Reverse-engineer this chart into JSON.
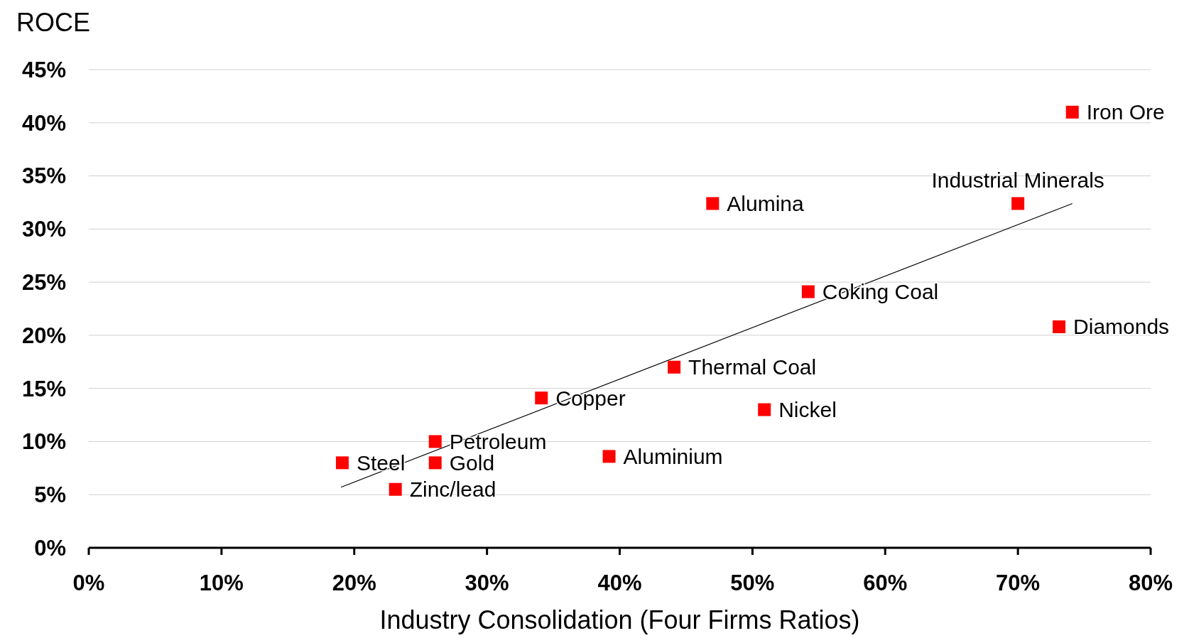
{
  "chart_data": {
    "type": "scatter",
    "ylabel": "ROCE",
    "xlabel": "Industry Consolidation (Four Firms Ratios)",
    "xlim": [
      0,
      80
    ],
    "ylim": [
      0,
      45
    ],
    "xticks": [
      {
        "value": 0,
        "label": "0%"
      },
      {
        "value": 10,
        "label": "10%"
      },
      {
        "value": 20,
        "label": "20%"
      },
      {
        "value": 30,
        "label": "30%"
      },
      {
        "value": 40,
        "label": "40%"
      },
      {
        "value": 50,
        "label": "50%"
      },
      {
        "value": 60,
        "label": "60%"
      },
      {
        "value": 70,
        "label": "70%"
      },
      {
        "value": 80,
        "label": "80%"
      }
    ],
    "yticks": [
      {
        "value": 0,
        "label": "0%"
      },
      {
        "value": 5,
        "label": "5%"
      },
      {
        "value": 10,
        "label": "10%"
      },
      {
        "value": 15,
        "label": "15%"
      },
      {
        "value": 20,
        "label": "20%"
      },
      {
        "value": 25,
        "label": "25%"
      },
      {
        "value": 30,
        "label": "30%"
      },
      {
        "value": 35,
        "label": "35%"
      },
      {
        "value": 40,
        "label": "40%"
      },
      {
        "value": 45,
        "label": "45%"
      }
    ],
    "grid": "y",
    "series": [
      {
        "marker": "square",
        "color": "#ff0000",
        "x": [
          74.1,
          70.0,
          47.0,
          54.2,
          73.1,
          44.1,
          50.9,
          34.1,
          39.2,
          26.1,
          26.1,
          19.1,
          23.1
        ],
        "values": [
          41.0,
          32.4,
          32.4,
          24.1,
          20.8,
          17.0,
          13.0,
          14.1,
          8.6,
          10.0,
          8.0,
          8.0,
          5.5
        ]
      },
      {
        "type": "line",
        "color": "#000000",
        "x": [
          19.0,
          74.1
        ],
        "values": [
          5.7,
          32.4
        ]
      }
    ],
    "annotations": [
      {
        "text": "Iron Ore",
        "x": 74.1,
        "y": 41.0
      },
      {
        "text": "Industrial Minerals",
        "x": 70.0,
        "y": 32.4
      },
      {
        "text": "Alumina",
        "x": 47.0,
        "y": 32.4
      },
      {
        "text": "Coking Coal",
        "x": 54.2,
        "y": 24.1
      },
      {
        "text": "Diamonds",
        "x": 73.1,
        "y": 20.8
      },
      {
        "text": "Thermal Coal",
        "x": 44.1,
        "y": 17.0
      },
      {
        "text": "Nickel",
        "x": 50.9,
        "y": 13.0
      },
      {
        "text": "Copper",
        "x": 34.1,
        "y": 14.1
      },
      {
        "text": "Aluminium",
        "x": 39.2,
        "y": 8.6
      },
      {
        "text": "Petroleum",
        "x": 26.1,
        "y": 10.0
      },
      {
        "text": "Gold",
        "x": 26.1,
        "y": 8.0
      },
      {
        "text": "Steel",
        "x": 19.1,
        "y": 8.0
      },
      {
        "text": "Zinc/lead",
        "x": 23.1,
        "y": 5.5
      }
    ]
  }
}
